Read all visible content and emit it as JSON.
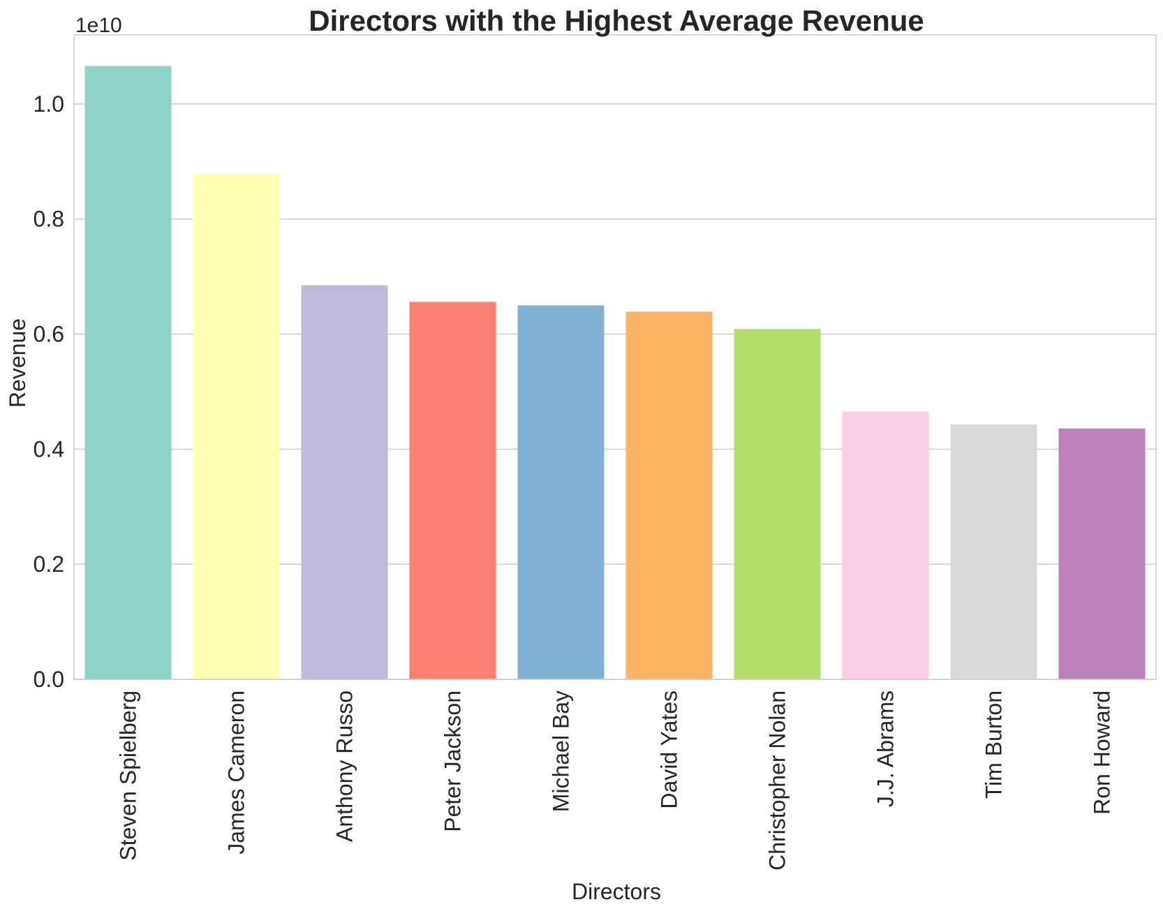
{
  "chart_data": {
    "type": "bar",
    "title": "Directors with the Highest Average Revenue",
    "xlabel": "Directors",
    "ylabel": "Revenue",
    "y_offset_label": "1e10",
    "ylim": [
      0,
      1.12
    ],
    "yticks": [
      0.0,
      0.2,
      0.4,
      0.6,
      0.8,
      1.0
    ],
    "ytick_labels": [
      "0.0",
      "0.2",
      "0.4",
      "0.6",
      "0.8",
      "1.0"
    ],
    "grid": "horizontal",
    "categories": [
      "Steven Spielberg",
      "James Cameron",
      "Anthony Russo",
      "Peter Jackson",
      "Michael Bay",
      "David Yates",
      "Christopher Nolan",
      "J.J. Abrams",
      "Tim Burton",
      "Ron Howard"
    ],
    "values": [
      1.066,
      0.878,
      0.685,
      0.656,
      0.65,
      0.639,
      0.609,
      0.465,
      0.443,
      0.436
    ],
    "value_scale": 10000000000,
    "colors": [
      "#8dd3c7",
      "#ffffb3",
      "#bebada",
      "#fb8072",
      "#80b1d3",
      "#fdb462",
      "#b3de69",
      "#fccde5",
      "#d9d9d9",
      "#bc80bd"
    ]
  }
}
